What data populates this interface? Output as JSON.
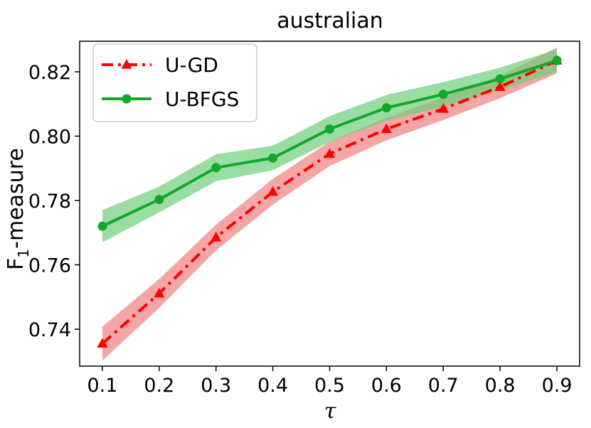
{
  "chart_data": {
    "type": "line",
    "title": "australian",
    "xlabel": "τ",
    "ylabel": "F",
    "ylabel_subscript": "1",
    "ylabel_suffix": "-measure",
    "x": [
      0.1,
      0.2,
      0.3,
      0.4,
      0.5,
      0.6,
      0.7,
      0.8,
      0.9
    ],
    "xticks": [
      "0.1",
      "0.2",
      "0.3",
      "0.4",
      "0.5",
      "0.6",
      "0.7",
      "0.8",
      "0.9"
    ],
    "yticks": [
      "0.74",
      "0.76",
      "0.78",
      "0.80",
      "0.82"
    ],
    "ytick_values": [
      0.74,
      0.76,
      0.78,
      0.8,
      0.82
    ],
    "xlim": [
      0.06,
      0.94
    ],
    "ylim": [
      0.7285,
      0.8295
    ],
    "grid": false,
    "legend_position": "top-left",
    "series": [
      {
        "name": "U-GD",
        "color": "#ff0000",
        "band_color": "#f08080",
        "marker": "triangle",
        "linestyle": "dash-dot",
        "values": [
          0.7355,
          0.7511,
          0.7685,
          0.7827,
          0.7945,
          0.8022,
          0.8085,
          0.8153,
          0.8235
        ],
        "band": [
          0.0053,
          0.0045,
          0.004,
          0.004,
          0.0038,
          0.0035,
          0.0035,
          0.0035,
          0.004
        ]
      },
      {
        "name": "U-BFGS",
        "color": "#11a82a",
        "band_color": "#6fcf7a",
        "marker": "circle",
        "linestyle": "solid",
        "values": [
          0.772,
          0.7803,
          0.7902,
          0.7932,
          0.8022,
          0.8088,
          0.813,
          0.8178,
          0.8235
        ],
        "band": [
          0.005,
          0.004,
          0.0042,
          0.0038,
          0.004,
          0.004,
          0.0038,
          0.0035,
          0.0035
        ]
      }
    ]
  }
}
